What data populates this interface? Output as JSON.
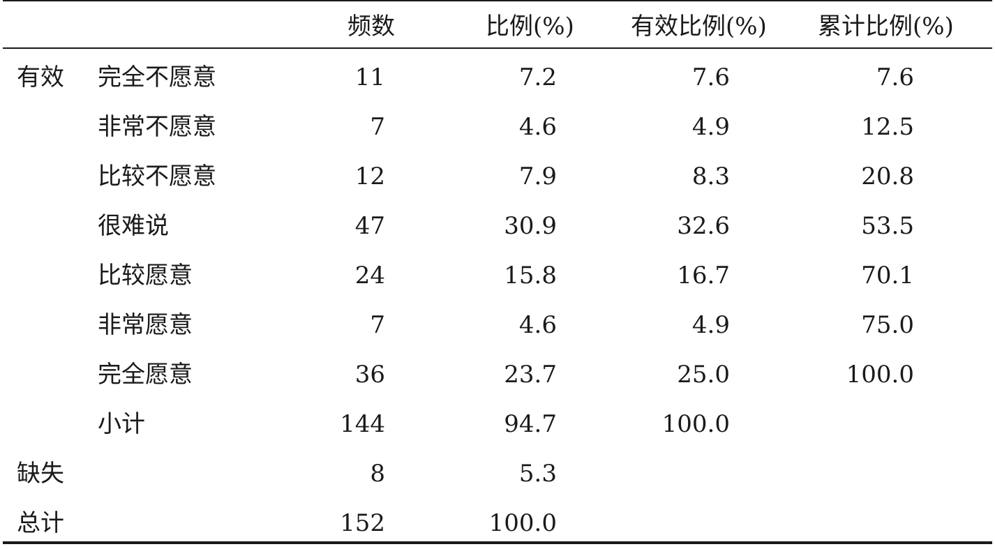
{
  "headers": {
    "freq": "频数",
    "pct": "比例(%)",
    "valid_pct": "有效比例(%)",
    "cum_pct": "累计比例(%)"
  },
  "rows": [
    {
      "group": "有效",
      "label": "完全不愿意",
      "freq": "11",
      "pct": "7.2",
      "valid_pct": "7.6",
      "cum_pct": "7.6"
    },
    {
      "group": "",
      "label": "非常不愿意",
      "freq": "7",
      "pct": "4.6",
      "valid_pct": "4.9",
      "cum_pct": "12.5"
    },
    {
      "group": "",
      "label": "比较不愿意",
      "freq": "12",
      "pct": "7.9",
      "valid_pct": "8.3",
      "cum_pct": "20.8"
    },
    {
      "group": "",
      "label": "很难说",
      "freq": "47",
      "pct": "30.9",
      "valid_pct": "32.6",
      "cum_pct": "53.5"
    },
    {
      "group": "",
      "label": "比较愿意",
      "freq": "24",
      "pct": "15.8",
      "valid_pct": "16.7",
      "cum_pct": "70.1"
    },
    {
      "group": "",
      "label": "非常愿意",
      "freq": "7",
      "pct": "4.6",
      "valid_pct": "4.9",
      "cum_pct": "75.0"
    },
    {
      "group": "",
      "label": "完全愿意",
      "freq": "36",
      "pct": "23.7",
      "valid_pct": "25.0",
      "cum_pct": "100.0"
    },
    {
      "group": "",
      "label": "小计",
      "freq": "144",
      "pct": "94.7",
      "valid_pct": "100.0",
      "cum_pct": ""
    },
    {
      "group": "缺失",
      "label": "",
      "freq": "8",
      "pct": "5.3",
      "valid_pct": "",
      "cum_pct": ""
    },
    {
      "group": "总计",
      "label": "",
      "freq": "152",
      "pct": "100.0",
      "valid_pct": "",
      "cum_pct": ""
    }
  ]
}
